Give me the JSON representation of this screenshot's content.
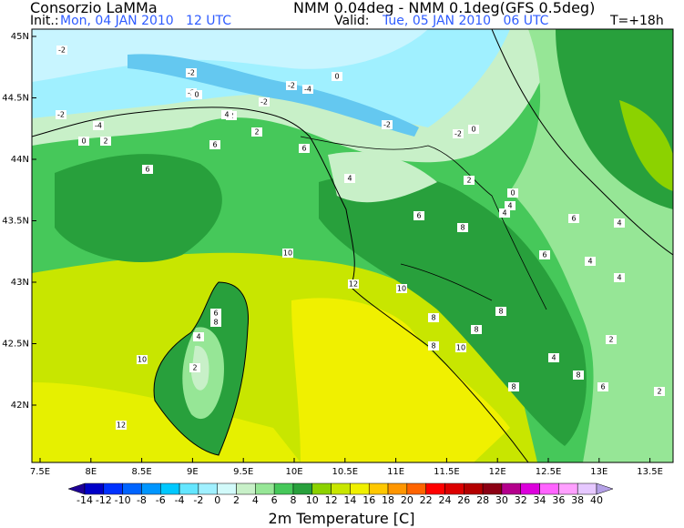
{
  "header": {
    "org": "Consorzio LaMMa",
    "model": "NMM 0.04deg - NMM 0.1deg(GFS 0.5deg)",
    "init_label": "Init.:",
    "init": "Mon, 04 JAN 2010   12 UTC",
    "valid_label": "Valid:",
    "valid": "Tue, 05 JAN 2010   06 UTC",
    "lead": "T=+18h"
  },
  "map": {
    "lat_labels": [
      "45N",
      "44.5N",
      "44N",
      "43.5N",
      "43N",
      "42.5N",
      "42N"
    ],
    "lon_labels": [
      "7.5E",
      "8E",
      "8.5E",
      "9E",
      "9.5E",
      "10E",
      "10.5E",
      "11E",
      "11.5E",
      "12E",
      "12.5E",
      "13E",
      "13.5E"
    ],
    "contour_labels": [
      "-2",
      "-2",
      "-2",
      "-2",
      "-4",
      "0",
      "-2",
      "-4",
      "-2",
      "-2",
      "-2",
      "0",
      "0",
      "0",
      "0",
      "2",
      "2",
      "2",
      "4",
      "4",
      "4",
      "2",
      "4",
      "6",
      "6",
      "6",
      "6",
      "8",
      "8",
      "8",
      "8",
      "6",
      "4",
      "8",
      "8",
      "10",
      "10",
      "12",
      "10",
      "12",
      "2",
      "4",
      "6",
      "8",
      "6",
      "4",
      "2",
      "6",
      "10",
      "8",
      "4",
      "2",
      "4"
    ]
  },
  "colorbar": {
    "labels": [
      "-14",
      "-12",
      "-10",
      "-8",
      "-6",
      "-4",
      "-2",
      "0",
      "2",
      "4",
      "6",
      "8",
      "10",
      "12",
      "14",
      "16",
      "18",
      "20",
      "22",
      "24",
      "26",
      "28",
      "30",
      "32",
      "34",
      "36",
      "38",
      "40"
    ],
    "colors": [
      "#1e0096",
      "#0000c8",
      "#0032ff",
      "#0064ff",
      "#0096ff",
      "#00c8ff",
      "#64e6ff",
      "#a0f0ff",
      "#d2fafa",
      "#c8f0c8",
      "#96e696",
      "#46c85a",
      "#28a03c",
      "#8cd200",
      "#c8e600",
      "#f0f000",
      "#ffc800",
      "#ff9600",
      "#ff6400",
      "#ff0000",
      "#dc0000",
      "#b40000",
      "#8c0014",
      "#b4008c",
      "#dc00dc",
      "#ff64ff",
      "#ffa0ff",
      "#e6c8ff",
      "#b4a0e6"
    ],
    "title": "2m Temperature [C]"
  }
}
